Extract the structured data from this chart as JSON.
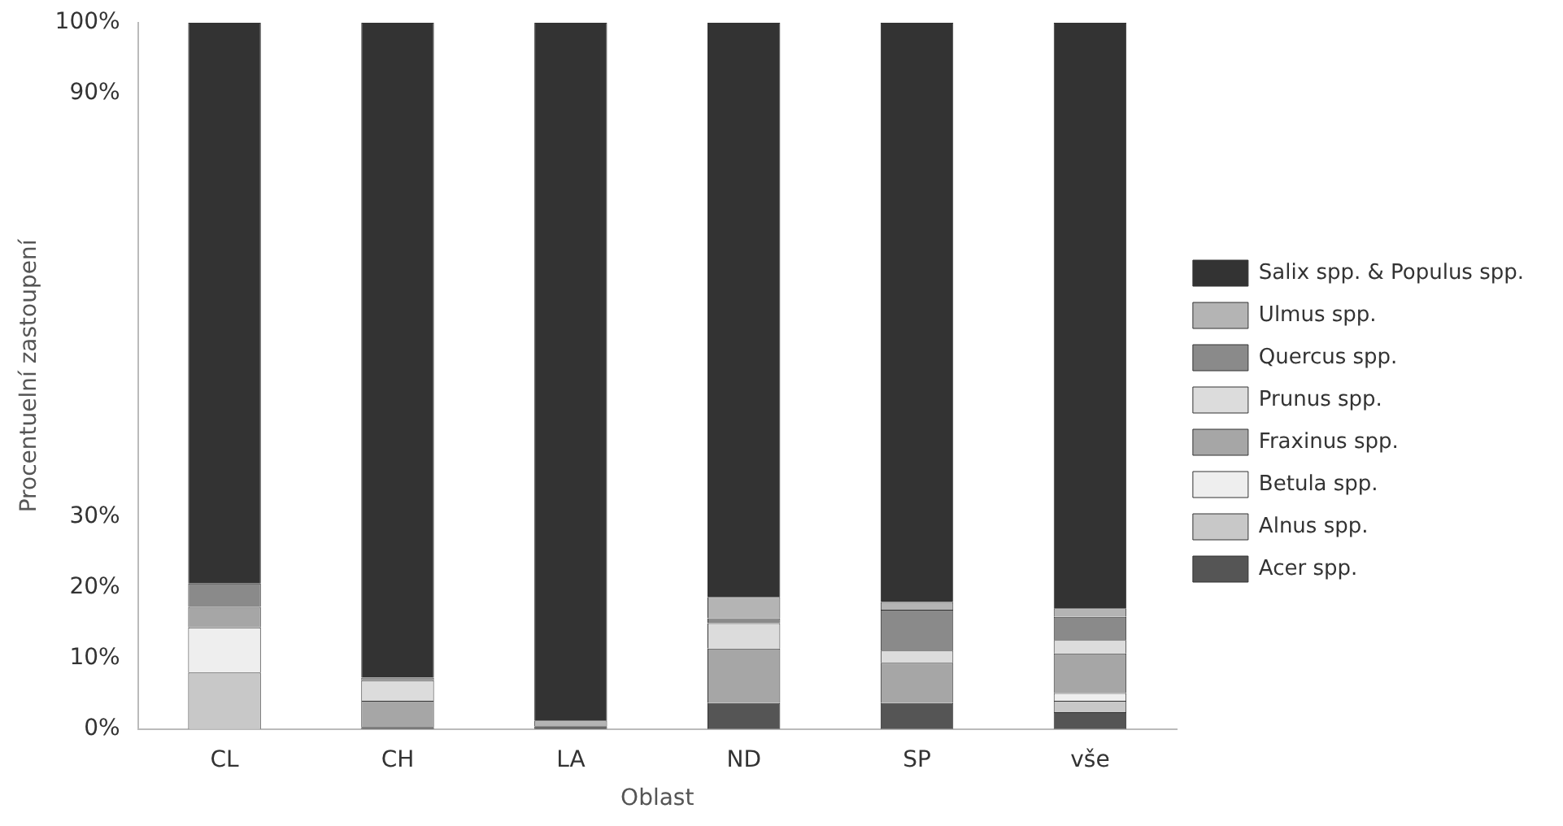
{
  "chart_data": {
    "type": "bar",
    "stacked": true,
    "categories": [
      "CL",
      "CH",
      "LA",
      "ND",
      "SP",
      "vše"
    ],
    "series": [
      {
        "name": "Acer spp.",
        "color": "#555555",
        "values": [
          0,
          0.3,
          0.4,
          3.7,
          3.7,
          2.4
        ]
      },
      {
        "name": "Alnus spp.",
        "color": "#c8c8c8",
        "values": [
          8,
          0,
          0,
          0,
          0,
          1.6
        ]
      },
      {
        "name": "Betula spp.",
        "color": "#eeeeee",
        "values": [
          6.4,
          0,
          0,
          0,
          0,
          1.1
        ]
      },
      {
        "name": "Fraxinus spp.",
        "color": "#a6a6a6",
        "values": [
          2.9,
          3.7,
          0,
          7.7,
          5.7,
          5.6
        ]
      },
      {
        "name": "Prunus spp.",
        "color": "#dcdcdc",
        "values": [
          0,
          2.9,
          0,
          3.6,
          1.7,
          1.9
        ]
      },
      {
        "name": "Quercus spp.",
        "color": "#8a8a8a",
        "values": [
          3.3,
          0.4,
          0,
          0.7,
          5.8,
          3.3
        ]
      },
      {
        "name": "Ulmus spp.",
        "color": "#b4b4b4",
        "values": [
          0,
          0,
          0.8,
          3,
          1.1,
          1.2
        ]
      },
      {
        "name": "Salix spp. & Populus spp.",
        "color": "#333333",
        "values": [
          79.4,
          92.7,
          98.8,
          81.3,
          82,
          82.9
        ]
      }
    ],
    "ylim": [
      0,
      100
    ],
    "yticks": [
      {
        "value": 0,
        "label": "0%"
      },
      {
        "value": 10,
        "label": "10%"
      },
      {
        "value": 20,
        "label": "20%"
      },
      {
        "value": 30,
        "label": "30%"
      },
      {
        "value": 90,
        "label": "90%"
      },
      {
        "value": 100,
        "label": "100%"
      }
    ],
    "xlabel": "Oblast",
    "ylabel": "Procentuelní zastoupení",
    "grid": false,
    "legend": "right"
  }
}
